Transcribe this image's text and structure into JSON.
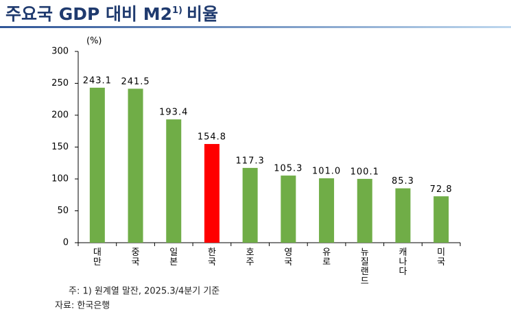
{
  "chart_data": {
    "type": "bar",
    "title": "주요국 GDP 대비 M2",
    "title_superscript": "1)",
    "title_suffix": "비율",
    "y_unit": "(%)",
    "categories": [
      "대만",
      "중국",
      "일본",
      "한국",
      "호주",
      "영국",
      "유로",
      "뉴질랜드",
      "캐나다",
      "미국"
    ],
    "values": [
      243.1,
      241.5,
      193.4,
      154.8,
      117.3,
      105.3,
      101.0,
      100.1,
      85.3,
      72.8
    ],
    "value_labels": [
      "243.1",
      "241.5",
      "193.4",
      "154.8",
      "117.3",
      "105.3",
      "101.0",
      "100.1",
      "85.3",
      "72.8"
    ],
    "colors": [
      "#70ad47",
      "#70ad47",
      "#70ad47",
      "#ff0000",
      "#70ad47",
      "#70ad47",
      "#70ad47",
      "#70ad47",
      "#70ad47",
      "#70ad47"
    ],
    "ylim": [
      0,
      300
    ],
    "yticks": [
      0,
      50,
      100,
      150,
      200,
      250,
      300
    ],
    "grid": false,
    "notes": [
      "주: 1) 원계열 말잔, 2025.3/4분기 기준",
      "자료: 한국은행"
    ]
  }
}
